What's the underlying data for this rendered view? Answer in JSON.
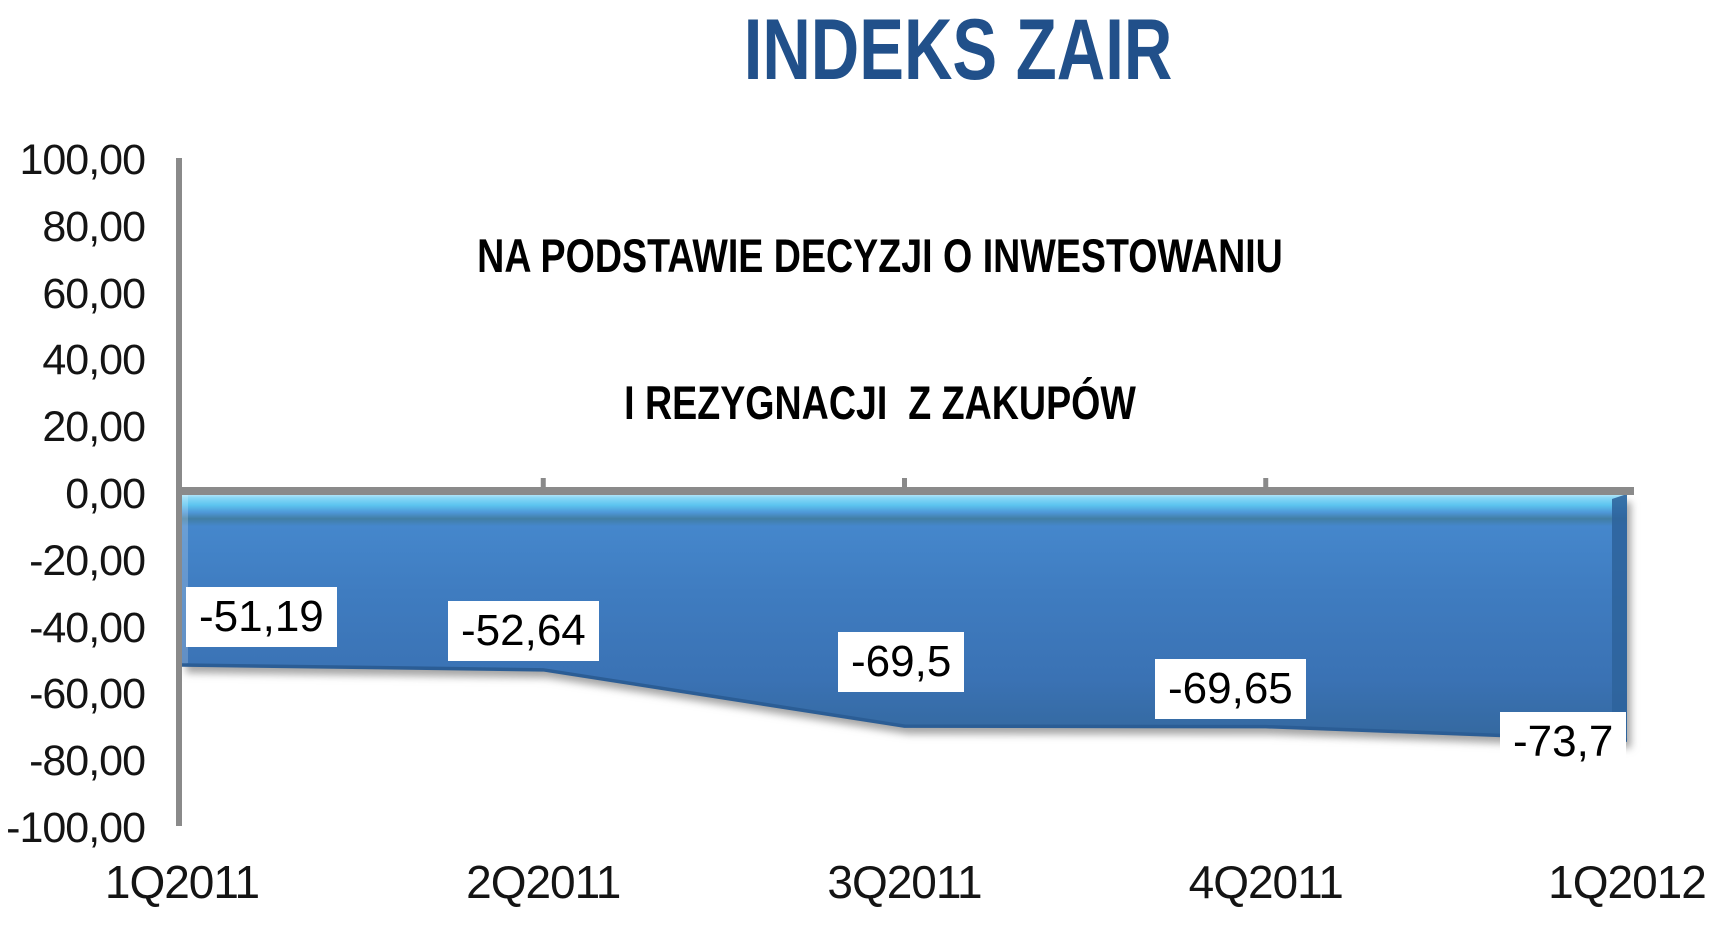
{
  "title": "INDEKS ZAIR",
  "subtitle_line1": "NA PODSTAWIE DECYZJI O INWESTOWANIU",
  "subtitle_line2": "I REZYGNACJI  Z ZAKUPÓW",
  "chart_data": {
    "type": "area",
    "title": "INDEKS ZAIR",
    "subtitle": "NA PODSTAWIE DECYZJI O INWESTOWANIU I REZYGNACJI Z ZAKUPÓW",
    "categories": [
      "1Q2011",
      "2Q2011",
      "3Q2011",
      "4Q2011",
      "1Q2012"
    ],
    "values": [
      -51.19,
      -52.64,
      -69.5,
      -69.65,
      -73.7
    ],
    "data_labels": [
      "-51,19",
      "-52,64",
      "-69,5",
      "-69,65",
      "-73,7"
    ],
    "y_ticks": [
      "100,00",
      "80,00",
      "60,00",
      "40,00",
      "20,00",
      "0,00",
      "-20,00",
      "-40,00",
      "-60,00",
      "-80,00",
      "-100,00"
    ],
    "ylim": [
      -100,
      100
    ],
    "xlabel": "",
    "ylabel": "",
    "grid": false,
    "legend_position": "none",
    "decimal_separator": ",",
    "colors": {
      "series_fill_main": "#3E7CC0",
      "series_fill_top_highlight": "#5CC4EF",
      "series_fill_dark_band": "#417EA4",
      "series_bottom_edge": "#2B5D95",
      "series_right_bevel": "#2E639C",
      "axis_line": "#8A8A8A",
      "title_text": "#21508A",
      "subtitle_text": "#000000",
      "axis_text": "#141414",
      "data_label_bg": "#FFFFFF",
      "data_label_text": "#000000",
      "shadow": "#696969"
    }
  }
}
